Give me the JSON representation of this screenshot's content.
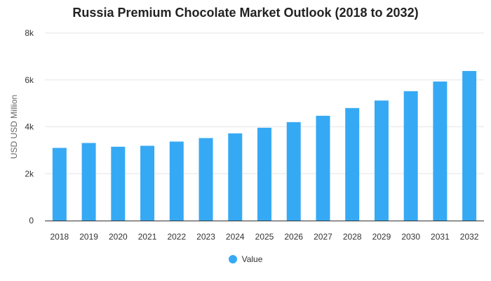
{
  "chart_data": {
    "type": "bar",
    "title": "Russia Premium Chocolate Market Outlook (2018 to 2032)",
    "ylabel": "USD USD Million",
    "categories": [
      "2018",
      "2019",
      "2020",
      "2021",
      "2022",
      "2023",
      "2024",
      "2025",
      "2026",
      "2027",
      "2028",
      "2029",
      "2030",
      "2031",
      "2032"
    ],
    "series": [
      {
        "name": "Value",
        "values": [
          3100,
          3310,
          3150,
          3190,
          3370,
          3520,
          3720,
          3960,
          4200,
          4470,
          4800,
          5120,
          5520,
          5930,
          6380
        ]
      }
    ],
    "ylim": [
      0,
      8000
    ],
    "yticks": [
      0,
      2000,
      4000,
      6000,
      8000
    ],
    "ytick_labels": [
      "0",
      "2k",
      "4k",
      "6k",
      "8k"
    ],
    "grid": true,
    "legend_position": "bottom-center",
    "bar_color": "#36a9f4"
  }
}
